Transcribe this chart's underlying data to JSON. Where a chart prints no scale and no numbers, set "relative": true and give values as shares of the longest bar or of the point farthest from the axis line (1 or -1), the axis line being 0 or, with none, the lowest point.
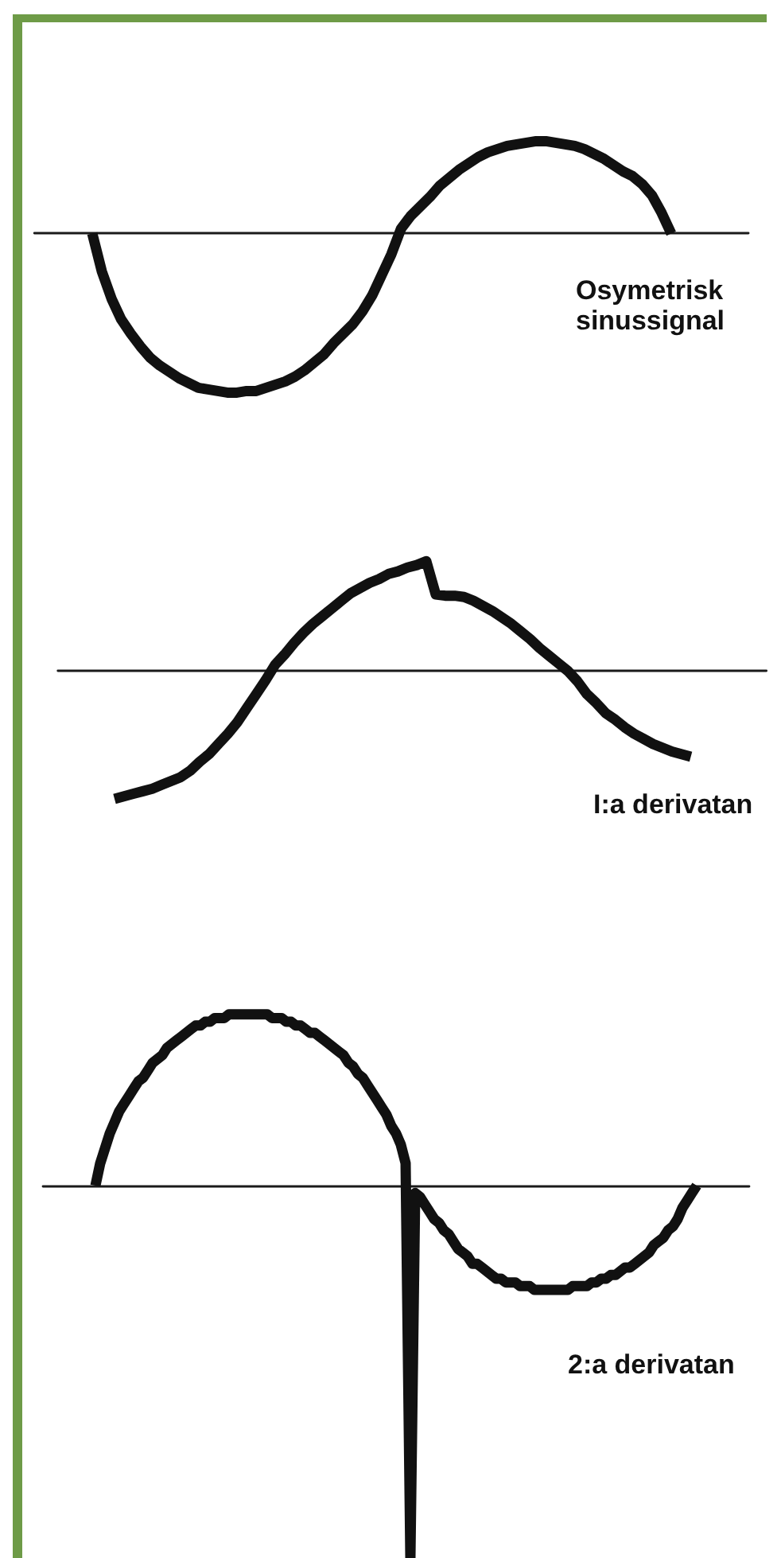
{
  "chart_data": [
    {
      "type": "line",
      "relative": true,
      "title": "Osymetrisk sinussignal",
      "categories": [
        null,
        null,
        null,
        null,
        null,
        null,
        null,
        null,
        null,
        null,
        null,
        null,
        null,
        null,
        null,
        null,
        null,
        null,
        null,
        null,
        null,
        null,
        null,
        null,
        null,
        null,
        null,
        null,
        null,
        null,
        null,
        null,
        null,
        null,
        null,
        null,
        null,
        null,
        null,
        null,
        null,
        null,
        null,
        null,
        null,
        null,
        null,
        null,
        null,
        null,
        null,
        null,
        null,
        null,
        null,
        null,
        null,
        null,
        null,
        null,
        null,
        null,
        null,
        null,
        null,
        null,
        null,
        null,
        null,
        null,
        null,
        null,
        null,
        null,
        null
      ],
      "series": [
        {
          "color": "#111111",
          "values": [
            null,
            null,
            null,
            null,
            null,
            null,
            0,
            -0.24,
            -0.41,
            -0.54,
            -0.63,
            -0.71,
            -0.78,
            -0.83,
            -0.87,
            -0.91,
            -0.94,
            -0.97,
            -0.98,
            -0.99,
            -1,
            -1,
            -0.99,
            -0.99,
            -0.97,
            -0.95,
            -0.93,
            -0.9,
            -0.86,
            -0.81,
            -0.76,
            -0.69,
            -0.63,
            -0.57,
            -0.49,
            -0.39,
            -0.26,
            -0.13,
            0.03,
            0.11,
            0.17,
            0.23,
            0.3,
            0.35,
            0.4,
            0.44,
            0.48,
            0.51,
            0.53,
            0.55,
            0.56,
            0.57,
            0.58,
            0.58,
            0.57,
            0.56,
            0.55,
            0.53,
            0.5,
            0.47,
            0.43,
            0.39,
            0.36,
            0.31,
            0.24,
            0.13,
            0,
            null,
            null,
            null,
            null,
            null,
            null,
            null,
            null
          ]
        }
      ]
    },
    {
      "type": "line",
      "relative": true,
      "title": "I:a derivatan",
      "categories": [
        null,
        null,
        null,
        null,
        null,
        null,
        null,
        null,
        null,
        null,
        null,
        null,
        null,
        null,
        null,
        null,
        null,
        null,
        null,
        null,
        null,
        null,
        null,
        null,
        null,
        null,
        null,
        null,
        null,
        null,
        null,
        null,
        null,
        null,
        null,
        null,
        null,
        null,
        null,
        null,
        null,
        null,
        null,
        null,
        null,
        null,
        null,
        null,
        null,
        null,
        null,
        null,
        null,
        null,
        null,
        null,
        null,
        null,
        null,
        null,
        null,
        null,
        null,
        null,
        null,
        null,
        null,
        null,
        null,
        null,
        null,
        null,
        null,
        null,
        null,
        null
      ],
      "series": [
        {
          "color": "#111111",
          "values": [
            null,
            null,
            null,
            null,
            null,
            null,
            -1,
            -0.98,
            -0.96,
            -0.94,
            -0.92,
            -0.89,
            -0.86,
            -0.83,
            -0.78,
            -0.71,
            -0.65,
            -0.57,
            -0.49,
            -0.4,
            -0.29,
            -0.18,
            -0.07,
            0.05,
            0.13,
            0.22,
            0.3,
            0.37,
            0.43,
            0.49,
            0.55,
            0.61,
            0.65,
            0.69,
            0.72,
            0.76,
            0.78,
            0.81,
            0.83,
            0.86,
            0.6,
            0.59,
            0.59,
            0.58,
            0.55,
            0.51,
            0.47,
            0.42,
            0.37,
            0.31,
            0.25,
            0.18,
            0.12,
            0.06,
            0,
            -0.08,
            -0.18,
            -0.25,
            -0.33,
            -0.38,
            -0.44,
            -0.49,
            -0.53,
            -0.57,
            -0.6,
            -0.63,
            -0.65,
            -0.67,
            null,
            null,
            null,
            null,
            null,
            null,
            null,
            null
          ]
        }
      ]
    },
    {
      "type": "line",
      "relative": true,
      "title": "2:a derivatan",
      "categories": [
        null,
        null,
        null,
        null,
        null,
        null,
        null,
        null,
        null,
        null,
        null,
        null,
        null,
        null,
        null,
        null,
        null,
        null,
        null,
        null,
        null,
        null,
        null,
        null,
        null,
        null,
        null,
        null,
        null,
        null,
        null,
        null,
        null,
        null,
        null,
        null,
        null,
        null,
        null,
        null,
        null,
        null,
        null,
        null,
        null,
        null,
        null,
        null,
        null,
        null,
        null,
        null,
        null,
        null,
        null,
        null,
        null,
        null,
        null,
        null,
        null,
        null,
        null,
        null,
        null,
        null,
        null,
        null,
        null,
        null,
        null,
        null,
        null,
        null,
        null,
        null,
        null,
        null,
        null,
        null,
        null,
        null,
        null,
        null,
        null,
        null,
        null,
        null,
        null,
        null,
        null,
        null,
        null,
        null,
        null,
        null,
        null,
        null,
        null,
        null,
        null,
        null,
        null,
        null,
        null,
        null,
        null,
        null,
        null,
        null,
        null,
        null,
        null,
        null,
        null,
        null,
        null,
        null,
        null,
        null,
        null,
        null,
        null,
        null,
        null,
        null,
        null,
        null,
        null,
        null,
        null,
        null,
        null,
        null,
        null,
        null,
        null,
        null,
        null,
        null,
        null,
        null,
        null,
        null,
        null,
        null,
        null,
        null,
        null
      ],
      "series": [
        {
          "color": "#111111",
          "values": [
            null,
            null,
            null,
            null,
            null,
            null,
            null,
            null,
            null,
            null,
            null,
            0,
            0.06,
            0.1,
            0.14,
            0.17,
            0.2,
            0.22,
            0.24,
            0.26,
            0.28,
            0.29,
            0.31,
            0.33,
            0.34,
            0.35,
            0.37,
            0.38,
            0.39,
            0.4,
            0.41,
            0.42,
            0.43,
            0.43,
            0.44,
            0.44,
            0.45,
            0.45,
            0.45,
            0.46,
            0.46,
            0.46,
            0.46,
            0.46,
            0.46,
            0.46,
            0.46,
            0.46,
            0.45,
            0.45,
            0.45,
            0.44,
            0.44,
            0.43,
            0.43,
            0.42,
            0.41,
            0.41,
            0.4,
            0.39,
            0.38,
            0.37,
            0.36,
            0.35,
            0.33,
            0.32,
            0.3,
            0.29,
            0.27,
            0.25,
            0.23,
            0.21,
            0.19,
            0.16,
            0.14,
            0.11,
            0.06,
            -1,
            -0.02,
            -0.03,
            -0.05,
            -0.07,
            -0.09,
            -0.1,
            -0.12,
            -0.13,
            -0.15,
            -0.17,
            -0.18,
            -0.19,
            -0.21,
            -0.21,
            -0.22,
            -0.23,
            -0.24,
            -0.25,
            -0.25,
            -0.26,
            -0.26,
            -0.26,
            -0.27,
            -0.27,
            -0.27,
            -0.28,
            -0.28,
            -0.28,
            -0.28,
            -0.28,
            -0.28,
            -0.28,
            -0.28,
            -0.27,
            -0.27,
            -0.27,
            -0.27,
            -0.26,
            -0.26,
            -0.25,
            -0.25,
            -0.24,
            -0.24,
            -0.23,
            -0.22,
            -0.22,
            -0.21,
            -0.2,
            -0.19,
            -0.18,
            -0.16,
            -0.15,
            -0.14,
            -0.12,
            -0.11,
            -0.09,
            -0.06,
            -0.04,
            -0.02,
            0,
            null,
            null,
            null,
            null,
            null,
            null,
            null,
            null,
            null,
            null,
            null
          ]
        }
      ]
    }
  ]
}
